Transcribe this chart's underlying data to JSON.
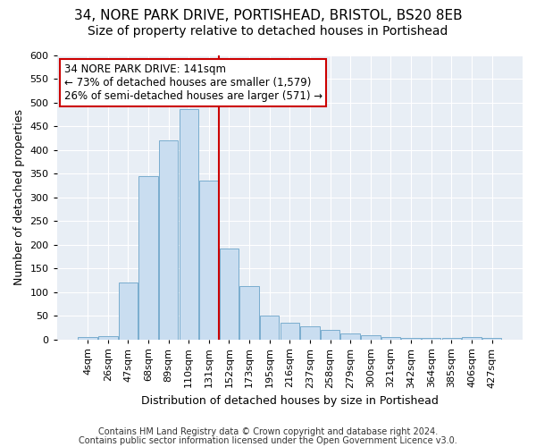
{
  "title1": "34, NORE PARK DRIVE, PORTISHEAD, BRISTOL, BS20 8EB",
  "title2": "Size of property relative to detached houses in Portishead",
  "xlabel": "Distribution of detached houses by size in Portishead",
  "ylabel": "Number of detached properties",
  "categories": [
    "4sqm",
    "26sqm",
    "47sqm",
    "68sqm",
    "89sqm",
    "110sqm",
    "131sqm",
    "152sqm",
    "173sqm",
    "195sqm",
    "216sqm",
    "237sqm",
    "258sqm",
    "279sqm",
    "300sqm",
    "321sqm",
    "342sqm",
    "364sqm",
    "385sqm",
    "406sqm",
    "427sqm"
  ],
  "values": [
    4,
    7,
    120,
    345,
    420,
    485,
    335,
    192,
    113,
    50,
    35,
    28,
    20,
    12,
    8,
    4,
    3,
    2,
    2,
    4,
    3
  ],
  "bar_color": "#c9ddf0",
  "bar_edge_color": "#7aadce",
  "vline_color": "#cc0000",
  "vline_pos": 6.5,
  "annotation_line1": "34 NORE PARK DRIVE: 141sqm",
  "annotation_line2": "← 73% of detached houses are smaller (1,579)",
  "annotation_line3": "26% of semi-detached houses are larger (571) →",
  "annotation_box_color": "#ffffff",
  "annotation_box_edge": "#cc0000",
  "ylim": [
    0,
    600
  ],
  "yticks": [
    0,
    50,
    100,
    150,
    200,
    250,
    300,
    350,
    400,
    450,
    500,
    550,
    600
  ],
  "footnote1": "Contains HM Land Registry data © Crown copyright and database right 2024.",
  "footnote2": "Contains public sector information licensed under the Open Government Licence v3.0.",
  "bg_color": "#ffffff",
  "plot_bg_color": "#e8eef5",
  "grid_color": "#ffffff",
  "title1_fontsize": 11,
  "title2_fontsize": 10,
  "annotation_fontsize": 8.5,
  "axis_label_fontsize": 9,
  "tick_fontsize": 8,
  "footnote_fontsize": 7
}
